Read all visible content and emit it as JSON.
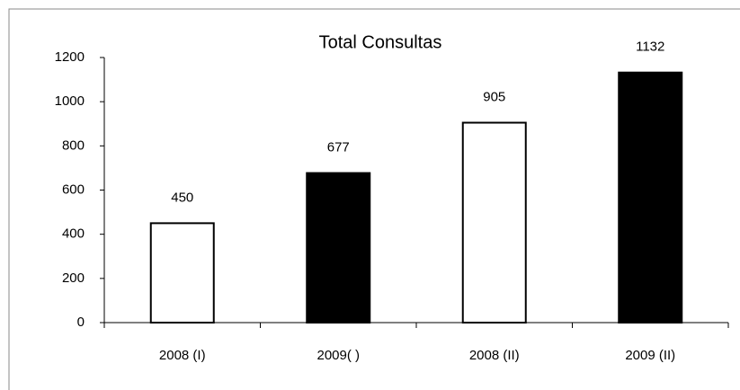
{
  "chart_data": {
    "type": "bar",
    "title": "Total Consultas",
    "categories": [
      "2008 (I)",
      "2009( )",
      "2008 (II)",
      "2009 (II)"
    ],
    "values": [
      450,
      677,
      905,
      1132
    ],
    "colors": [
      "#ffffff",
      "#000000",
      "#ffffff",
      "#000000"
    ],
    "ylim": [
      0,
      1200
    ],
    "yticks": [
      0,
      200,
      400,
      600,
      800,
      1000,
      1200
    ],
    "grid": false
  }
}
